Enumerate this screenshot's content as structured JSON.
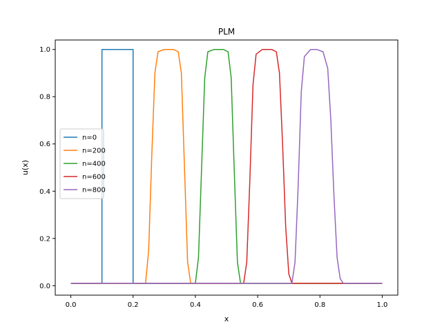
{
  "chart_data": {
    "type": "line",
    "title": "PLM",
    "xlabel": "x",
    "ylabel": "u(x)",
    "xlim": [
      -0.05,
      1.05
    ],
    "ylim": [
      -0.04,
      1.04
    ],
    "xticks": [
      0.0,
      0.2,
      0.4,
      0.6,
      0.8,
      1.0
    ],
    "xtick_labels": [
      "0.0",
      "0.2",
      "0.4",
      "0.6",
      "0.8",
      "1.0"
    ],
    "yticks": [
      0.0,
      0.2,
      0.4,
      0.6,
      0.8,
      1.0
    ],
    "ytick_labels": [
      "0.0",
      "0.2",
      "0.4",
      "0.6",
      "0.8",
      "1.0"
    ],
    "grid": false,
    "legend_position": "center-left",
    "baseline": 0.01,
    "series": [
      {
        "name": "n=0",
        "color": "#1f77b4",
        "x": [
          0.0,
          0.1,
          0.1,
          0.2,
          0.2,
          1.0
        ],
        "y": [
          0.01,
          0.01,
          1.0,
          1.0,
          0.01,
          0.01
        ]
      },
      {
        "name": "n=200",
        "color": "#ff7f0e",
        "x": [
          0.0,
          0.24,
          0.25,
          0.26,
          0.27,
          0.28,
          0.3,
          0.33,
          0.345,
          0.355,
          0.365,
          0.375,
          0.385,
          1.0
        ],
        "y": [
          0.01,
          0.01,
          0.15,
          0.55,
          0.9,
          0.99,
          1.0,
          1.0,
          0.99,
          0.9,
          0.5,
          0.1,
          0.01,
          0.01
        ]
      },
      {
        "name": "n=400",
        "color": "#2ca02c",
        "x": [
          0.0,
          0.4,
          0.41,
          0.42,
          0.43,
          0.44,
          0.46,
          0.49,
          0.505,
          0.515,
          0.525,
          0.535,
          0.545,
          1.0
        ],
        "y": [
          0.01,
          0.01,
          0.12,
          0.5,
          0.88,
          0.99,
          1.0,
          1.0,
          0.99,
          0.88,
          0.48,
          0.1,
          0.01,
          0.01
        ]
      },
      {
        "name": "n=600",
        "color": "#d62728",
        "x": [
          0.0,
          0.555,
          0.565,
          0.575,
          0.585,
          0.595,
          0.615,
          0.645,
          0.66,
          0.67,
          0.68,
          0.69,
          0.7,
          0.71,
          1.0
        ],
        "y": [
          0.01,
          0.01,
          0.1,
          0.45,
          0.85,
          0.98,
          1.0,
          1.0,
          0.99,
          0.9,
          0.6,
          0.25,
          0.05,
          0.01,
          0.01
        ]
      },
      {
        "name": "n=800",
        "color": "#9467bd",
        "x": [
          0.0,
          0.71,
          0.72,
          0.73,
          0.74,
          0.75,
          0.77,
          0.79,
          0.81,
          0.825,
          0.835,
          0.845,
          0.855,
          0.865,
          0.875,
          1.0
        ],
        "y": [
          0.01,
          0.01,
          0.1,
          0.42,
          0.82,
          0.97,
          1.0,
          1.0,
          0.99,
          0.92,
          0.7,
          0.38,
          0.12,
          0.03,
          0.01,
          0.01
        ]
      }
    ]
  }
}
